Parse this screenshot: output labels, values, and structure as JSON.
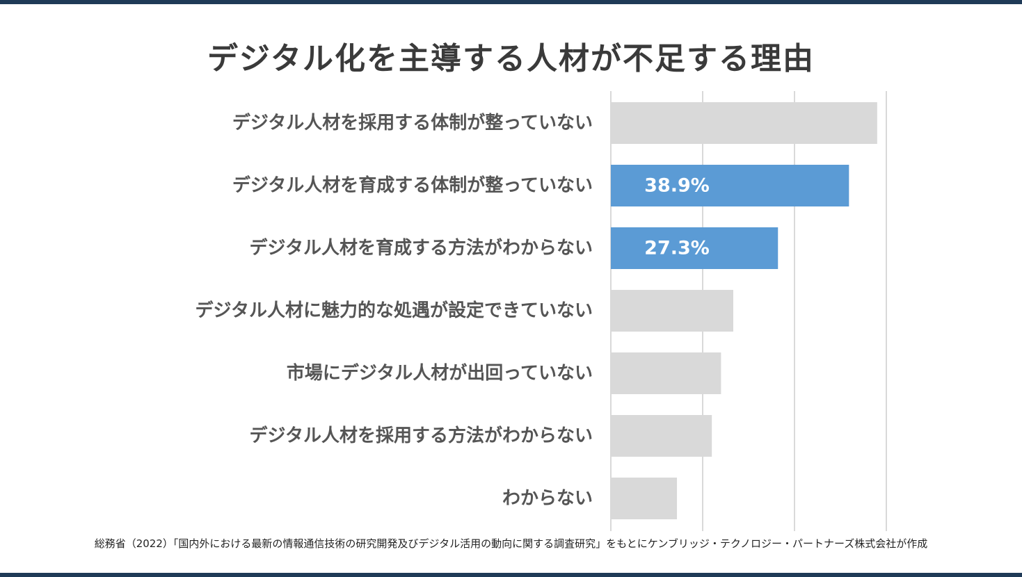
{
  "title": "デジタル化を主導する人材が不足する理由",
  "source": "総務省（2022）「国内外における最新の情報通信技術の研究開発及びデジタル活用の動向に関する調査研究」をもとにケンブリッジ・テクノロジー・パートナーズ株式会社が作成",
  "colors": {
    "highlight": "#5b9bd5",
    "default": "#d9d9d9",
    "grid": "#d9d9d9",
    "frame": "#1f3a57"
  },
  "chart_data": {
    "type": "bar",
    "orientation": "horizontal",
    "categories": [
      "デジタル人材を採用する体制が整っていない",
      "デジタル人材を育成する体制が整っていない",
      "デジタル人材を育成する方法がわからない",
      "デジタル人材に魅力的な処遇が設定できていない",
      "市場にデジタル人材が出回っていない",
      "デジタル人材を採用する方法がわからない",
      "わからない"
    ],
    "values": [
      43.5,
      38.9,
      27.3,
      20.0,
      18.0,
      16.5,
      10.8
    ],
    "data_labels": [
      "",
      "38.9%",
      "27.3%",
      "",
      "",
      "",
      ""
    ],
    "highlighted": [
      false,
      true,
      true,
      false,
      false,
      false,
      false
    ],
    "xlim": [
      0,
      60
    ],
    "grid": true,
    "legend": "none"
  }
}
